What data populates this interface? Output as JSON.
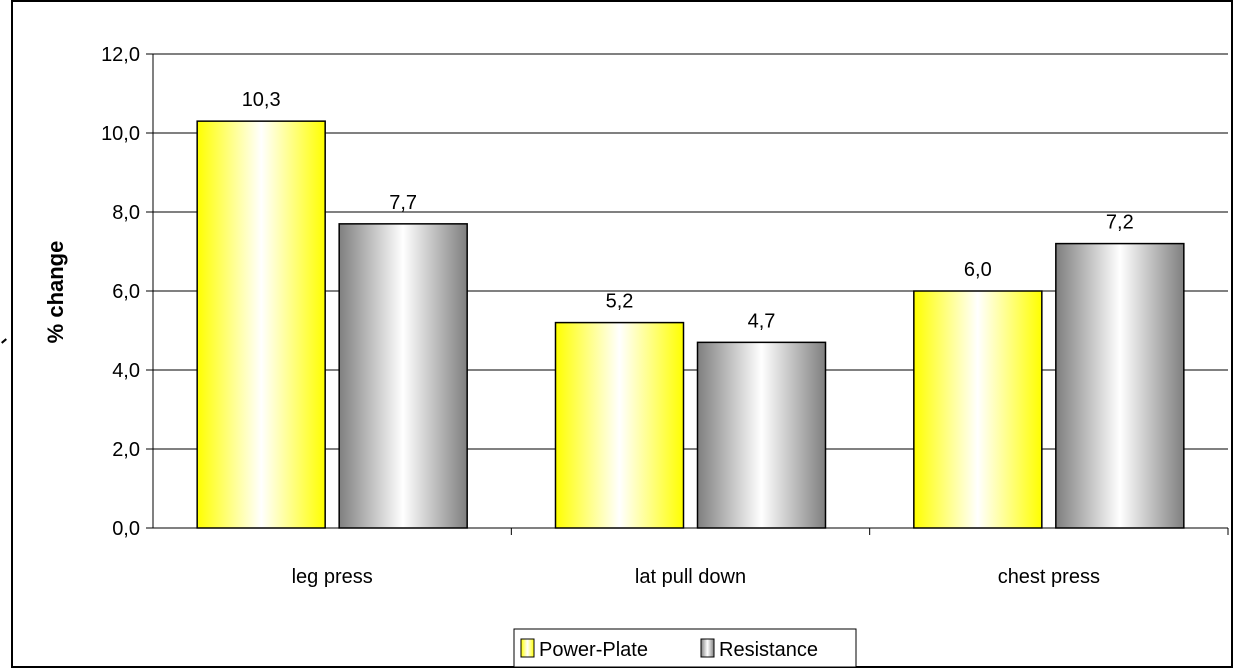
{
  "chart_data": {
    "type": "bar",
    "categories": [
      "leg press",
      "lat pull down",
      "chest press"
    ],
    "series": [
      {
        "name": "Power-Plate",
        "values": [
          10.3,
          5.2,
          6.0
        ],
        "labels": [
          "10,3",
          "5,2",
          "6,0"
        ]
      },
      {
        "name": "Resistance",
        "values": [
          7.7,
          4.7,
          7.2
        ],
        "labels": [
          "7,7",
          "4,7",
          "7,2"
        ]
      }
    ],
    "ylabel": "% change",
    "xlabel": "",
    "title": "",
    "ylim": [
      0,
      12
    ],
    "yticks": [
      0,
      2,
      4,
      6,
      8,
      10,
      12
    ],
    "ytick_labels": [
      "0,0",
      "2,0",
      "4,0",
      "6,0",
      "8,0",
      "10,0",
      "12,0"
    ],
    "grid": true,
    "legend_position": "bottom",
    "colors": {
      "power_plate_edge": "#ffff00",
      "power_plate_center": "#ffffff",
      "resistance_edge": "#7f7f7f",
      "resistance_center": "#ffffff",
      "gridline": "#000000",
      "bar_outline": "#000000"
    }
  }
}
